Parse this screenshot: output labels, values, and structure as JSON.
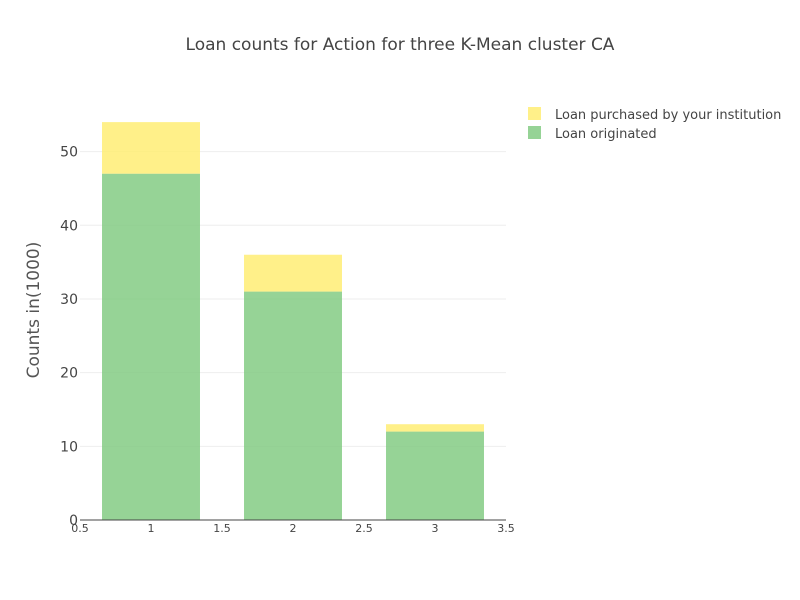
{
  "chart_data": {
    "type": "bar",
    "barmode": "stack",
    "title": "Loan counts for Action for three K-Mean cluster CA",
    "xlabel": "",
    "ylabel": "Counts in(1000)",
    "x": [
      1,
      2,
      3
    ],
    "x_ticks": [
      "0.5",
      "1",
      "1.5",
      "2",
      "2.5",
      "3",
      "3.5"
    ],
    "xlim": [
      0.5,
      3.5
    ],
    "y_ticks": [
      "0",
      "10",
      "20",
      "30",
      "40",
      "50"
    ],
    "ylim": [
      0,
      57
    ],
    "grid": true,
    "legend_position": "top-right",
    "series": [
      {
        "name": "Loan originated",
        "values": [
          47,
          31,
          12
        ],
        "color": "#7fc97f"
      },
      {
        "name": " Loan purchased by your institution",
        "values": [
          7,
          5,
          1
        ],
        "color": "#ffed6f"
      }
    ],
    "legend_order": [
      1,
      0
    ]
  }
}
